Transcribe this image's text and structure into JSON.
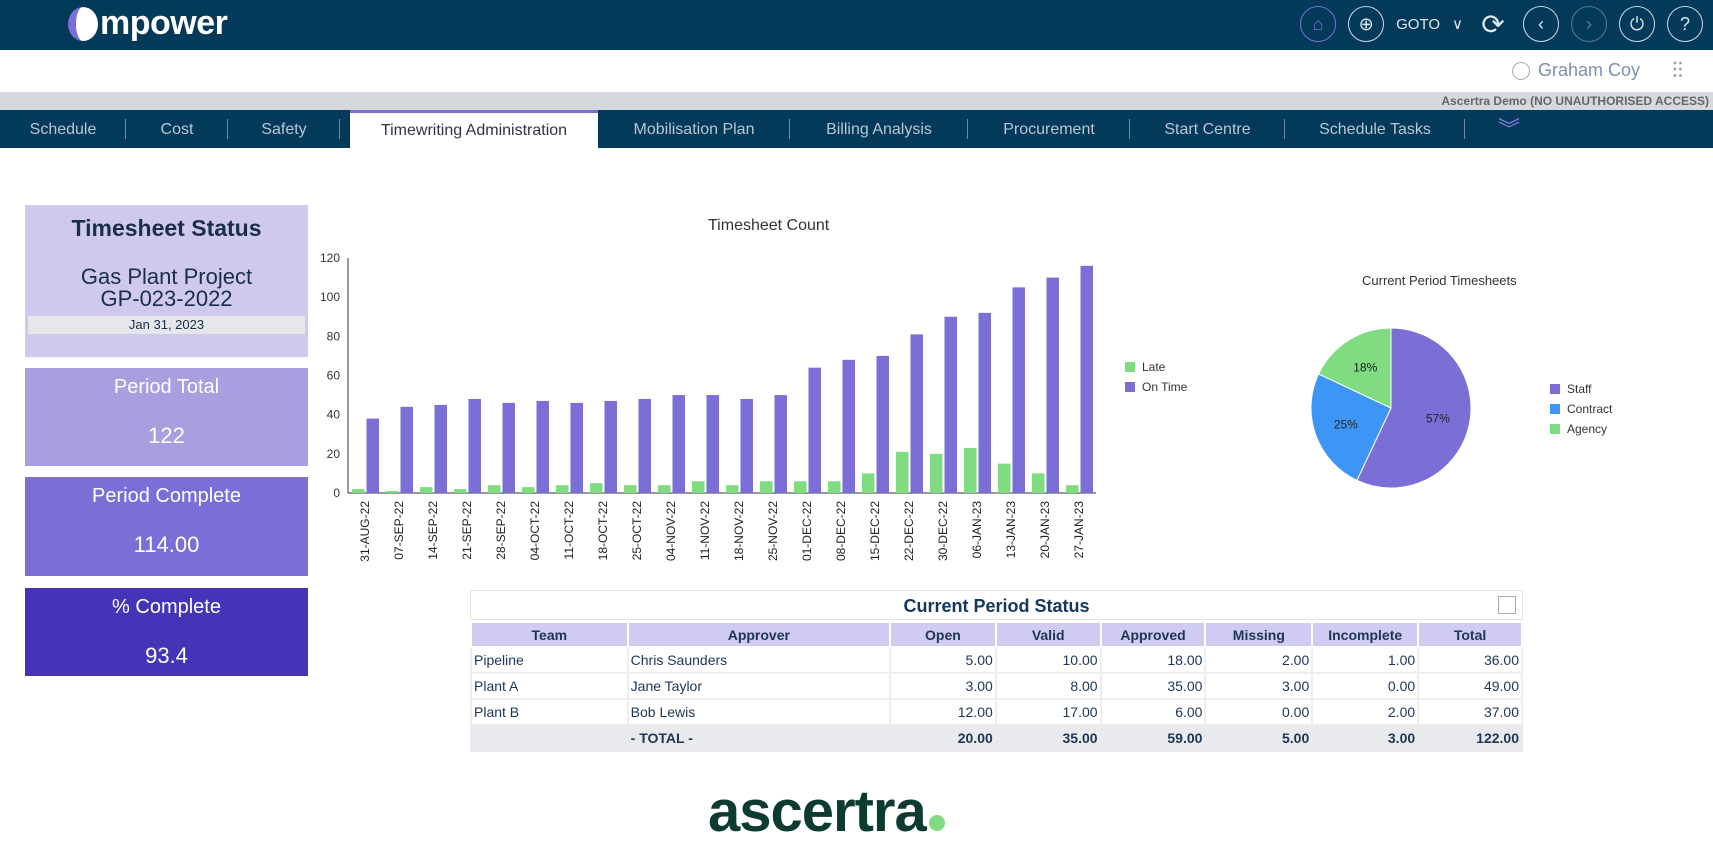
{
  "app": {
    "logo": "mpower",
    "goto": "GOTO",
    "user": "Graham Coy",
    "environment": "Ascertra Demo (NO UNAUTHORISED ACCESS)",
    "footer_logo": "ascertra"
  },
  "tabs": [
    "Schedule",
    "Cost",
    "Safety",
    "Timewriting Administration",
    "Mobilisation Plan",
    "Billing Analysis",
    "Procurement",
    "Start Centre",
    "Schedule Tasks"
  ],
  "status": {
    "title": "Timesheet Status",
    "project": "Gas Plant Project",
    "code": "GP-023-2022",
    "date": "Jan 31, 2023",
    "period_total_label": "Period Total",
    "period_total": "122",
    "period_complete_label": "Period Complete",
    "period_complete": "114.00",
    "pct_label": "% Complete",
    "pct": "93.4"
  },
  "chart_data": [
    {
      "type": "bar",
      "title": "Timesheet Count",
      "ylim": [
        0,
        120
      ],
      "yticks": [
        0,
        20,
        40,
        60,
        80,
        100,
        120
      ],
      "categories": [
        "31-AUG-22",
        "07-SEP-22",
        "14-SEP-22",
        "21-SEP-22",
        "28-SEP-22",
        "04-OCT-22",
        "11-OCT-22",
        "18-OCT-22",
        "25-OCT-22",
        "04-NOV-22",
        "11-NOV-22",
        "18-NOV-22",
        "25-NOV-22",
        "01-DEC-22",
        "08-DEC-22",
        "15-DEC-22",
        "22-DEC-22",
        "30-DEC-22",
        "06-JAN-23",
        "13-JAN-23",
        "20-JAN-23",
        "27-JAN-23"
      ],
      "series": [
        {
          "name": "Late",
          "color": "#7fdc80",
          "values": [
            2,
            1,
            3,
            2,
            4,
            3,
            4,
            5,
            4,
            4,
            6,
            4,
            6,
            6,
            6,
            10,
            21,
            20,
            23,
            15,
            10,
            4
          ]
        },
        {
          "name": "On Time",
          "color": "#7b6ed6",
          "values": [
            38,
            44,
            45,
            48,
            46,
            47,
            46,
            47,
            48,
            50,
            50,
            48,
            50,
            64,
            68,
            70,
            81,
            90,
            92,
            105,
            110,
            116
          ]
        }
      ],
      "legend": "right"
    },
    {
      "type": "pie",
      "title": "Current Period Timesheets",
      "categories": [
        "Staff",
        "Contract",
        "Agency"
      ],
      "values": [
        57,
        25,
        18
      ],
      "labels": [
        "57%",
        "25%",
        "18%"
      ],
      "colors": [
        "#7b6ed6",
        "#3d96f5",
        "#7fdc80"
      ],
      "legend": "right"
    }
  ],
  "table": {
    "title": "Current Period Status",
    "columns": [
      "Team",
      "Approver",
      "Open",
      "Valid",
      "Approved",
      "Missing",
      "Incomplete",
      "Total"
    ],
    "rows": [
      [
        "Pipeline",
        "Chris Saunders",
        "5.00",
        "10.00",
        "18.00",
        "2.00",
        "1.00",
        "36.00"
      ],
      [
        "Plant A",
        "Jane Taylor",
        "3.00",
        "8.00",
        "35.00",
        "3.00",
        "0.00",
        "49.00"
      ],
      [
        "Plant B",
        "Bob Lewis",
        "12.00",
        "17.00",
        "6.00",
        "0.00",
        "2.00",
        "37.00"
      ]
    ],
    "total": [
      "",
      "- TOTAL -",
      "20.00",
      "35.00",
      "59.00",
      "5.00",
      "3.00",
      "122.00"
    ]
  }
}
